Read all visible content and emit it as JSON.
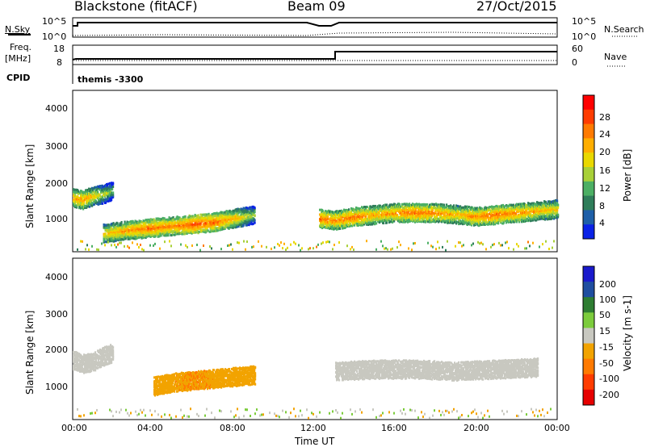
{
  "header": {
    "station": "Blackstone (fitACF)",
    "beam": "Beam 09",
    "date": "27/Oct/2015"
  },
  "status_panels": {
    "nsky_label": "N.Sky",
    "nsearch_label": "N.Search",
    "nsky_ticks": [
      "10^5",
      "10^0"
    ],
    "nsearch_ticks": [
      "10^5",
      "10^0"
    ],
    "freq_label": "Freq.",
    "freq_unit": "[MHz]",
    "freq_ticks": [
      "18",
      "8"
    ],
    "nave_label": "Nave",
    "nave_ticks": [
      "60",
      "0"
    ],
    "cpid_label": "CPID",
    "cpid_value": "themis -3300"
  },
  "axes": {
    "ylabel": "Slant Range [km]",
    "yticks": [
      "4000",
      "3000",
      "2000",
      "1000"
    ],
    "xlabel": "Time UT",
    "xticks": [
      "00:00",
      "04:00",
      "08:00",
      "12:00",
      "16:00",
      "20:00",
      "00:00"
    ]
  },
  "power_colorbar": {
    "label": "Power [dB]",
    "ticks": [
      "28",
      "24",
      "20",
      "16",
      "12",
      "8",
      "4"
    ],
    "colors": [
      "#ff0000",
      "#ff3c00",
      "#ff7a00",
      "#ffae00",
      "#e9d800",
      "#a8d038",
      "#4caf64",
      "#2f7d5a",
      "#1e5fa8",
      "#0a22e6"
    ]
  },
  "velocity_colorbar": {
    "label": "Velocity [m s-1]",
    "ticks": [
      "200",
      "100",
      "50",
      "15",
      "-15",
      "-50",
      "-100",
      "-200"
    ],
    "colors": [
      "#1a1acc",
      "#1f4ea0",
      "#2e7d32",
      "#7ccc3c",
      "#c8c8c0",
      "#f2a300",
      "#ff7a00",
      "#ff3c00",
      "#e60000"
    ]
  },
  "chart_data": [
    {
      "type": "heatmap",
      "title": "Power",
      "x_range_hours": [
        0,
        24
      ],
      "y_range_km": [
        180,
        4500
      ],
      "colorbar_range_db": [
        0,
        32
      ],
      "bands": [
        {
          "name": "morning_echo",
          "t": [
            0.0,
            0.5,
            1.0,
            1.5,
            2.0
          ],
          "range_km": [
            1650,
            1600,
            1700,
            1750,
            1850
          ],
          "power_db": [
            22,
            24,
            20,
            16,
            12
          ]
        },
        {
          "name": "main_band_day",
          "t": [
            1.5,
            3,
            4,
            5,
            6,
            7,
            8,
            9
          ],
          "range_km": [
            700,
            800,
            850,
            900,
            950,
            1000,
            1100,
            1200
          ],
          "power_db": [
            20,
            24,
            26,
            24,
            28,
            26,
            22,
            14
          ]
        },
        {
          "name": "afternoon_band",
          "t": [
            12.2,
            13,
            14,
            15,
            16,
            17,
            18,
            19,
            20,
            21,
            22,
            23,
            24
          ],
          "range_km": [
            1100,
            1050,
            1150,
            1200,
            1250,
            1250,
            1250,
            1200,
            1150,
            1200,
            1250,
            1300,
            1350
          ],
          "power_db": [
            26,
            24,
            26,
            22,
            24,
            26,
            24,
            22,
            24,
            26,
            24,
            22,
            20
          ]
        }
      ]
    },
    {
      "type": "heatmap",
      "title": "Velocity",
      "x_range_hours": [
        0,
        24
      ],
      "y_range_km": [
        180,
        4500
      ],
      "colorbar_range_ms": [
        -250,
        250
      ],
      "bands": [
        {
          "name": "ground_scatter_morning",
          "t": [
            0,
            0.5,
            1,
            1.5,
            2
          ],
          "range_km": [
            1800,
            1700,
            1750,
            1900,
            2000
          ],
          "velocity_ms": [
            0,
            0,
            0,
            0,
            0
          ]
        },
        {
          "name": "westward_flow",
          "t": [
            4,
            5,
            6,
            7,
            8,
            9
          ],
          "range_km": [
            1100,
            1200,
            1250,
            1300,
            1350,
            1400
          ],
          "velocity_ms": [
            -40,
            -45,
            -50,
            -45,
            -40,
            -30
          ]
        },
        {
          "name": "afternoon_ground",
          "t": [
            13,
            15,
            17,
            19,
            21,
            23
          ],
          "range_km": [
            1500,
            1550,
            1550,
            1500,
            1550,
            1600
          ],
          "velocity_ms": [
            0,
            0,
            0,
            0,
            0,
            0
          ]
        }
      ]
    }
  ]
}
